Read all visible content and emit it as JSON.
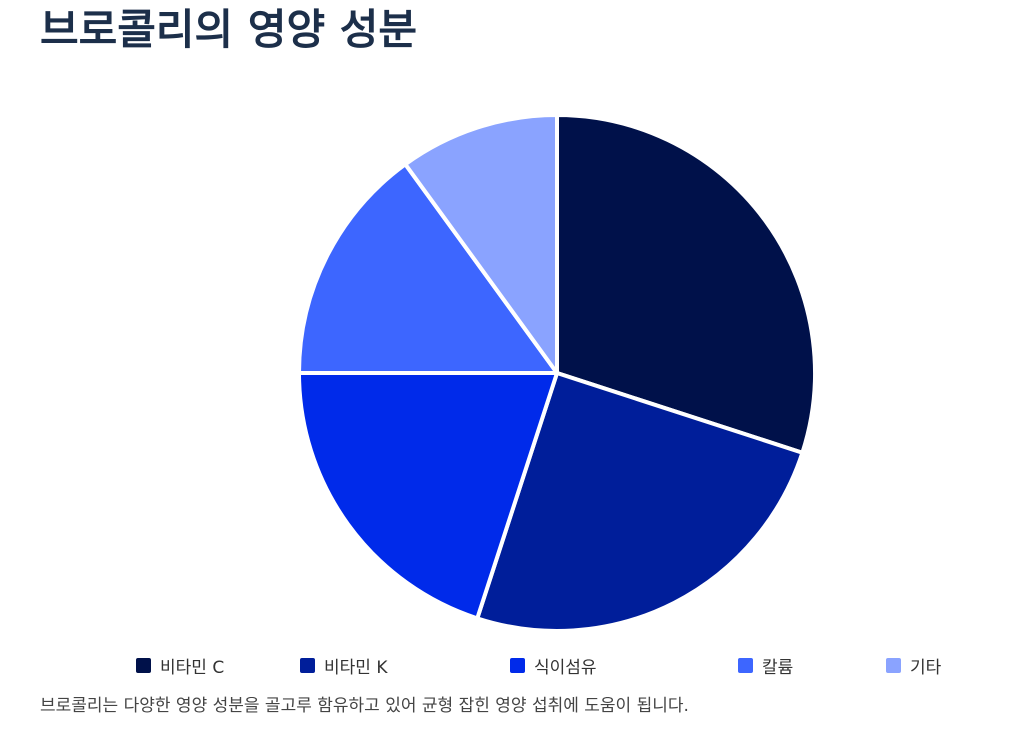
{
  "title": "브로콜리의 영양 성분",
  "caption": "브로콜리는 다양한 영양 성분을 골고루 함유하고 있어 균형 잡힌 영양 섭취에 도움이 됩니다.",
  "chart_data": {
    "type": "pie",
    "title": "브로콜리의 영양 성분",
    "categories": [
      "비타민 C",
      "비타민 K",
      "식이섬유",
      "칼륨",
      "기타"
    ],
    "values": [
      30,
      25,
      20,
      15,
      10
    ],
    "colors": [
      "#00114a",
      "#001e9a",
      "#002aea",
      "#3d66ff",
      "#8aa3ff"
    ],
    "start_angle": "12 o'clock",
    "direction": "clockwise",
    "legend_position": "bottom",
    "slice_border_color": "#ffffff"
  }
}
